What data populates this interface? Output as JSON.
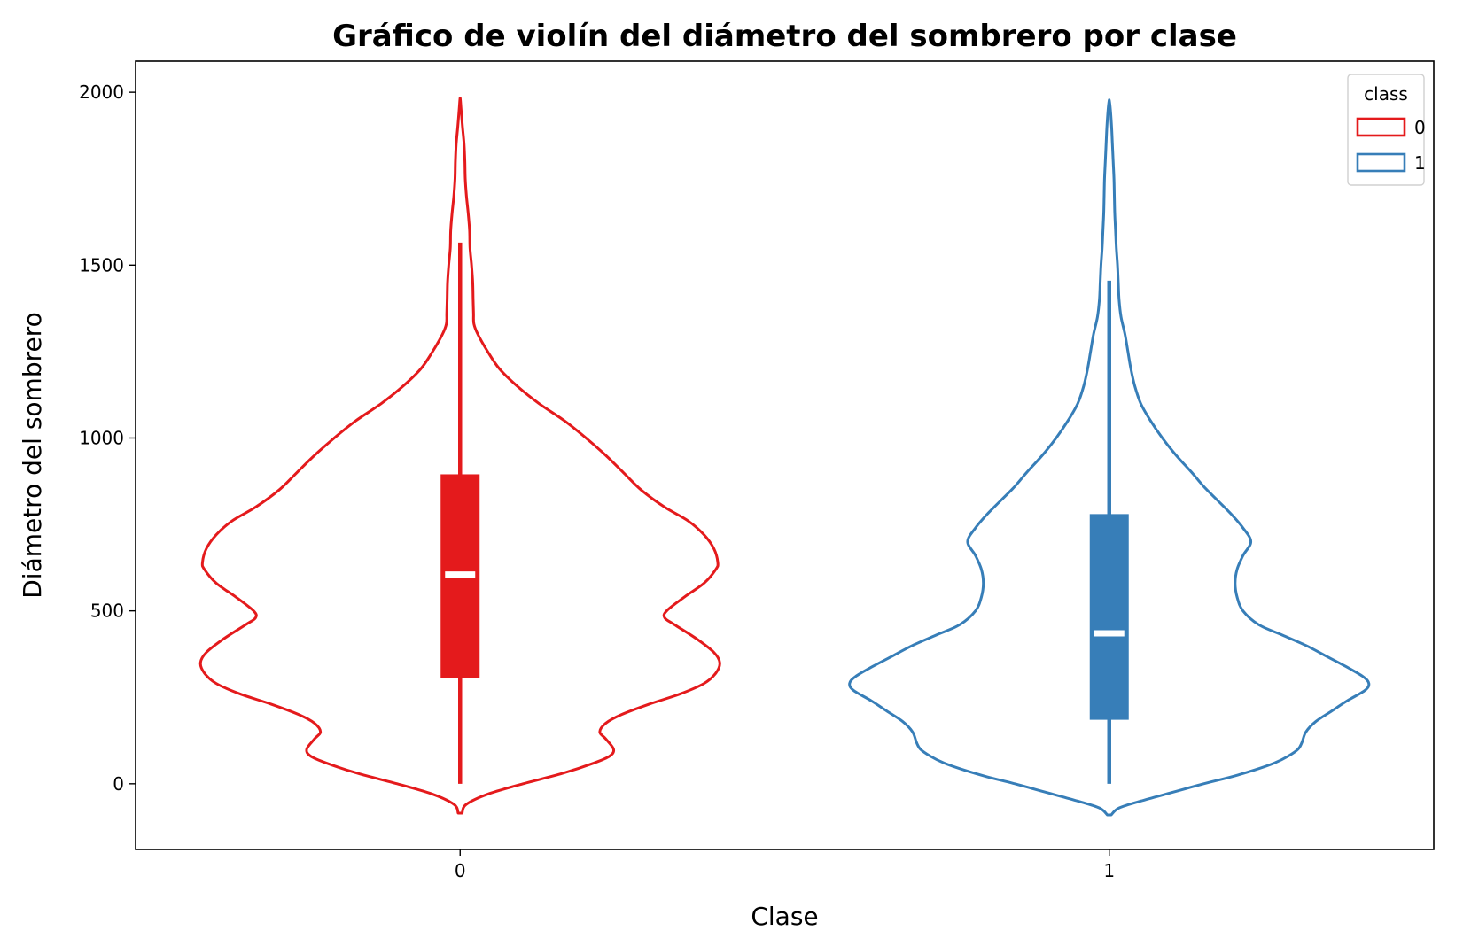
{
  "chart_data": {
    "type": "violin",
    "title": "Gráfico de violín del diámetro del sombrero por clase",
    "xlabel": "Clase",
    "ylabel": "Diámetro del sombrero",
    "categories": [
      "0",
      "1"
    ],
    "ylim": [
      -190,
      2090
    ],
    "yticks": [
      0,
      500,
      1000,
      1500,
      2000
    ],
    "grid": false,
    "legend": {
      "title": "class",
      "placement": "top-right",
      "entries": [
        "0",
        "1"
      ]
    },
    "colors": {
      "0": "#e41a1c",
      "1": "#377eb8"
    },
    "series": [
      {
        "name": "0",
        "category": "0",
        "color": "#e41a1c",
        "box": {
          "whisker_low": 0,
          "q1": 305,
          "median": 605,
          "q3": 895,
          "whisker_high": 1565
        },
        "density": {
          "y": [
            -85,
            -60,
            -30,
            0,
            30,
            60,
            80,
            100,
            130,
            150,
            175,
            200,
            230,
            260,
            290,
            320,
            350,
            380,
            420,
            460,
            480,
            500,
            540,
            580,
            620,
            640,
            680,
            720,
            760,
            800,
            850,
            900,
            950,
            1000,
            1050,
            1100,
            1150,
            1200,
            1250,
            1300,
            1330,
            1360,
            1400,
            1450,
            1500,
            1550,
            1600,
            1650,
            1700,
            1750,
            1800,
            1850,
            1900,
            1950,
            1980
          ],
          "half_width": [
            0.01,
            0.03,
            0.14,
            0.32,
            0.52,
            0.68,
            0.76,
            0.78,
            0.74,
            0.71,
            0.74,
            0.82,
            0.96,
            1.12,
            1.24,
            1.3,
            1.32,
            1.29,
            1.2,
            1.09,
            1.04,
            1.05,
            1.14,
            1.24,
            1.3,
            1.31,
            1.29,
            1.24,
            1.16,
            1.04,
            0.92,
            0.83,
            0.74,
            0.64,
            0.53,
            0.4,
            0.29,
            0.2,
            0.14,
            0.09,
            0.07,
            0.068,
            0.066,
            0.064,
            0.058,
            0.05,
            0.048,
            0.041,
            0.032,
            0.026,
            0.024,
            0.02,
            0.012,
            0.005,
            0.001
          ]
        }
      },
      {
        "name": "1",
        "category": "1",
        "color": "#377eb8",
        "box": {
          "whisker_low": 0,
          "q1": 185,
          "median": 435,
          "q3": 780,
          "whisker_high": 1455
        },
        "density": {
          "y": [
            -90,
            -70,
            -50,
            -25,
            0,
            20,
            40,
            60,
            80,
            100,
            120,
            150,
            180,
            210,
            240,
            270,
            290,
            310,
            340,
            370,
            400,
            430,
            460,
            500,
            540,
            580,
            620,
            660,
            700,
            740,
            780,
            820,
            860,
            900,
            950,
            1000,
            1050,
            1100,
            1150,
            1200,
            1250,
            1300,
            1350,
            1400,
            1450,
            1500,
            1550,
            1600,
            1650,
            1700,
            1750,
            1800,
            1850,
            1900,
            1950,
            1975
          ],
          "half_width": [
            0.01,
            0.05,
            0.16,
            0.32,
            0.48,
            0.62,
            0.74,
            0.84,
            0.91,
            0.96,
            0.98,
            1.0,
            1.05,
            1.13,
            1.21,
            1.3,
            1.32,
            1.29,
            1.2,
            1.1,
            1.0,
            0.88,
            0.76,
            0.68,
            0.65,
            0.64,
            0.65,
            0.68,
            0.72,
            0.68,
            0.62,
            0.55,
            0.48,
            0.42,
            0.34,
            0.27,
            0.21,
            0.16,
            0.13,
            0.11,
            0.095,
            0.08,
            0.06,
            0.05,
            0.046,
            0.042,
            0.036,
            0.032,
            0.028,
            0.026,
            0.024,
            0.02,
            0.016,
            0.012,
            0.006,
            0.001
          ]
        }
      }
    ]
  }
}
